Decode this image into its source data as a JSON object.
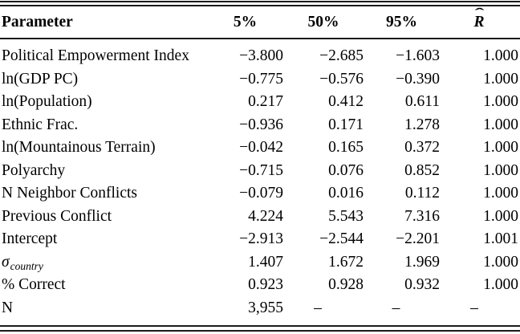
{
  "table": {
    "header": {
      "parameter": "Parameter",
      "p5": "5%",
      "p50": "50%",
      "p95": "95%",
      "rhat_base": "R",
      "rhat_accent": "ˆ"
    },
    "rows": [
      {
        "parameter": "Political Empowerment Index",
        "parameter_sub": "",
        "p5": "−3.800",
        "p50": "−2.685",
        "p95": "−1.603",
        "rhat": "1.000"
      },
      {
        "parameter": "ln(GDP PC)",
        "parameter_sub": "",
        "p5": "−0.775",
        "p50": "−0.576",
        "p95": "−0.390",
        "rhat": "1.000"
      },
      {
        "parameter": "ln(Population)",
        "parameter_sub": "",
        "p5": "0.217",
        "p50": "0.412",
        "p95": "0.611",
        "rhat": "1.000"
      },
      {
        "parameter": "Ethnic Frac.",
        "parameter_sub": "",
        "p5": "−0.936",
        "p50": "0.171",
        "p95": "1.278",
        "rhat": "1.000"
      },
      {
        "parameter": "ln(Mountainous Terrain)",
        "parameter_sub": "",
        "p5": "−0.042",
        "p50": "0.165",
        "p95": "0.372",
        "rhat": "1.000"
      },
      {
        "parameter": "Polyarchy",
        "parameter_sub": "",
        "p5": "−0.715",
        "p50": "0.076",
        "p95": "0.852",
        "rhat": "1.000"
      },
      {
        "parameter": "N Neighbor Conflicts",
        "parameter_sub": "",
        "p5": "−0.079",
        "p50": "0.016",
        "p95": "0.112",
        "rhat": "1.000"
      },
      {
        "parameter": "Previous Conflict",
        "parameter_sub": "",
        "p5": "4.224",
        "p50": "5.543",
        "p95": "7.316",
        "rhat": "1.000"
      },
      {
        "parameter": "Intercept",
        "parameter_sub": "",
        "p5": "−2.913",
        "p50": "−2.544",
        "p95": "−2.201",
        "rhat": "1.001"
      },
      {
        "parameter": "σ",
        "parameter_sub": "country",
        "p5": "1.407",
        "p50": "1.672",
        "p95": "1.969",
        "rhat": "1.000"
      },
      {
        "parameter": "% Correct",
        "parameter_sub": "",
        "p5": "0.923",
        "p50": "0.928",
        "p95": "0.932",
        "rhat": "1.000"
      },
      {
        "parameter": "N",
        "parameter_sub": "",
        "p5": "3,955",
        "p50": "–",
        "p95": "–",
        "rhat": "–"
      }
    ]
  }
}
